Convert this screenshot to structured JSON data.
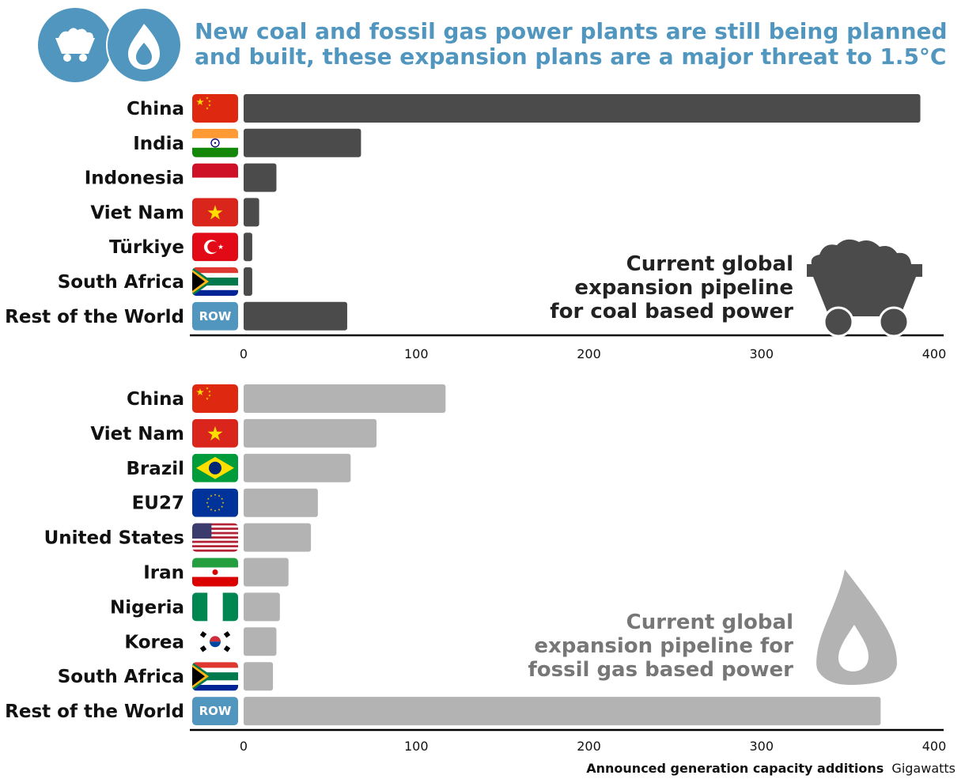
{
  "title": {
    "line1": "New coal and fossil gas power plants are still being planned",
    "line2": "and built, these expansion plans are a major threat to 1.5°C"
  },
  "header_icons": [
    "coal-cart-icon",
    "flame-icon"
  ],
  "colors": {
    "title": "#5196be",
    "coal_bar": "#4b4b4b",
    "gas_bar": "#b3b3b3",
    "row_badge": "#5196be"
  },
  "footer": {
    "axis_title": "Announced generation capacity additions",
    "unit": "Gigawatts"
  },
  "chart_data": [
    {
      "type": "bar",
      "orientation": "horizontal",
      "categories": [
        "China",
        "India",
        "Indonesia",
        "Viet Nam",
        "Türkiye",
        "South Africa",
        "Rest of the World"
      ],
      "flags": [
        "flag-china",
        "flag-india",
        "flag-indonesia",
        "flag-viet-nam",
        "flag-turkiye",
        "flag-south-africa",
        "row-badge"
      ],
      "badge_text": "ROW",
      "values": [
        392,
        68,
        19,
        9,
        5,
        5,
        60
      ],
      "xlim": [
        0,
        400
      ],
      "xticks": [
        0,
        100,
        200,
        300,
        400
      ],
      "annotation": [
        "Current global",
        "expansion pipeline",
        "for coal based power"
      ],
      "annotation_icon": "coal-cart-icon",
      "bar_color": "#4b4b4b"
    },
    {
      "type": "bar",
      "orientation": "horizontal",
      "categories": [
        "China",
        "Viet Nam",
        "Brazil",
        "EU27",
        "United States",
        "Iran",
        "Nigeria",
        "Korea",
        "South Africa",
        "Rest of the World"
      ],
      "flags": [
        "flag-china",
        "flag-viet-nam",
        "flag-brazil",
        "flag-eu27",
        "flag-united-states",
        "flag-iran",
        "flag-nigeria",
        "flag-korea",
        "flag-south-africa",
        "row-badge"
      ],
      "badge_text": "ROW",
      "values": [
        117,
        77,
        62,
        43,
        39,
        26,
        21,
        19,
        17,
        369
      ],
      "xlim": [
        0,
        400
      ],
      "xticks": [
        0,
        100,
        200,
        300,
        400
      ],
      "annotation": [
        "Current global",
        "expansion pipeline for",
        "fossil gas based power"
      ],
      "annotation_icon": "flame-icon",
      "bar_color": "#b3b3b3"
    }
  ]
}
